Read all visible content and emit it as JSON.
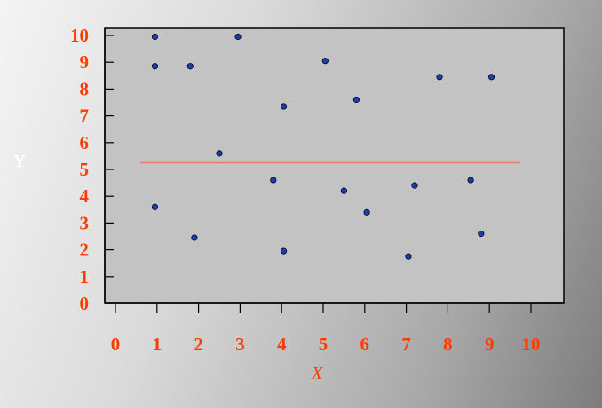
{
  "chart_data": {
    "type": "scatter",
    "title": "",
    "xlabel": "X",
    "ylabel": "Y",
    "xlim": [
      0,
      10
    ],
    "ylim": [
      0,
      10
    ],
    "x_ticks": [
      "0",
      "1",
      "2",
      "3",
      "4",
      "5",
      "6",
      "7",
      "8",
      "9",
      "10"
    ],
    "y_ticks": [
      "0",
      "1",
      "2",
      "3",
      "4",
      "5",
      "6",
      "7",
      "8",
      "9",
      "10"
    ],
    "grid": false,
    "series": [
      {
        "color": "#1f3fa0",
        "points": [
          {
            "x": 0.95,
            "y": 9.95
          },
          {
            "x": 0.95,
            "y": 8.85
          },
          {
            "x": 1.8,
            "y": 8.85
          },
          {
            "x": 2.95,
            "y": 9.95
          },
          {
            "x": 5.05,
            "y": 9.05
          },
          {
            "x": 4.05,
            "y": 7.35
          },
          {
            "x": 5.8,
            "y": 7.6
          },
          {
            "x": 7.8,
            "y": 8.45
          },
          {
            "x": 9.05,
            "y": 8.45
          },
          {
            "x": 2.5,
            "y": 5.6
          },
          {
            "x": 3.8,
            "y": 4.6
          },
          {
            "x": 5.5,
            "y": 4.2
          },
          {
            "x": 7.2,
            "y": 4.4
          },
          {
            "x": 8.55,
            "y": 4.6
          },
          {
            "x": 0.95,
            "y": 3.6
          },
          {
            "x": 6.05,
            "y": 3.4
          },
          {
            "x": 8.8,
            "y": 2.6
          },
          {
            "x": 1.9,
            "y": 2.45
          },
          {
            "x": 4.05,
            "y": 1.95
          },
          {
            "x": 7.05,
            "y": 1.75
          }
        ]
      }
    ],
    "reference_line": {
      "y": 5.25,
      "x_start": 0.6,
      "x_end": 9.75,
      "color": "#e0806a"
    }
  }
}
